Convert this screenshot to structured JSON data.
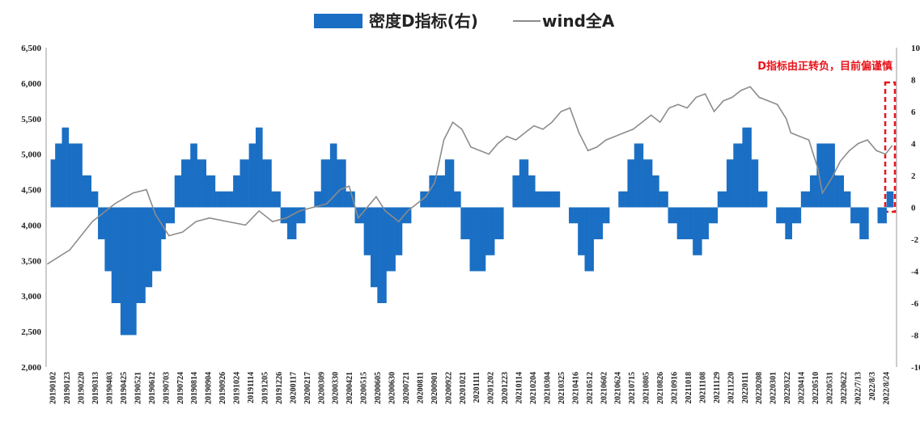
{
  "chart_data": {
    "type": "bar+line",
    "title": "",
    "legend": {
      "position": "top-center",
      "entries": [
        {
          "label": "密度D指标(右)",
          "color": "#1a6fc4",
          "kind": "bar"
        },
        {
          "label": "wind全A",
          "color": "#8c8c8c",
          "kind": "line"
        }
      ]
    },
    "left_axis": {
      "ylim": [
        2000,
        6500
      ],
      "ticks": [
        "2,000",
        "2,500",
        "3,000",
        "3,500",
        "4,000",
        "4,500",
        "5,000",
        "5,500",
        "6,000",
        "6,500"
      ]
    },
    "right_axis": {
      "ylim": [
        -10,
        10
      ],
      "ticks": [
        "-10",
        "-8",
        "-6",
        "-4",
        "-2",
        "0",
        "2",
        "4",
        "6",
        "8",
        "10"
      ]
    },
    "x_tick_labels": [
      "20190102",
      "20190123",
      "20190220",
      "20190313",
      "20190403",
      "20190425",
      "20190521",
      "20190612",
      "20190703",
      "20190724",
      "20190814",
      "20190904",
      "20190926",
      "20191024",
      "20191114",
      "20191205",
      "20191226",
      "20200117",
      "20200217",
      "20200309",
      "20200330",
      "20200421",
      "20200515",
      "20200605",
      "20200630",
      "20200721",
      "20200811",
      "20200901",
      "20200922",
      "20201021",
      "20201111",
      "20201202",
      "20201223",
      "20210114",
      "20210204",
      "20210304",
      "20210325",
      "20210416",
      "20210512",
      "20210602",
      "20210624",
      "20210715",
      "20210805",
      "20210826",
      "20210916",
      "20211018",
      "20211108",
      "20211129",
      "20211220",
      "20220111",
      "20220208",
      "20220301",
      "20220322",
      "20220414",
      "20220510",
      "20220531",
      "20220622",
      "2022/7/13",
      "2022/8/3",
      "2022/8/24"
    ],
    "annotation": {
      "text": "D指标由正转负，目前偏谨慎",
      "color": "#e8141b"
    },
    "density_D": {
      "name": "密度D指标(右)",
      "segments": [
        [
          0,
          0
        ],
        [
          2,
          3
        ],
        [
          4,
          4
        ],
        [
          7,
          5
        ],
        [
          10,
          4
        ],
        [
          14,
          4
        ],
        [
          16,
          2
        ],
        [
          20,
          1
        ],
        [
          23,
          -2
        ],
        [
          26,
          -4
        ],
        [
          29,
          -6
        ],
        [
          33,
          -8
        ],
        [
          37,
          -8
        ],
        [
          40,
          -6
        ],
        [
          44,
          -5
        ],
        [
          47,
          -4
        ],
        [
          51,
          -2
        ],
        [
          53,
          -1
        ],
        [
          57,
          2
        ],
        [
          60,
          3
        ],
        [
          64,
          4
        ],
        [
          67,
          3
        ],
        [
          71,
          2
        ],
        [
          75,
          1
        ],
        [
          79,
          1
        ],
        [
          83,
          2
        ],
        [
          86,
          3
        ],
        [
          90,
          4
        ],
        [
          93,
          5
        ],
        [
          96,
          3
        ],
        [
          100,
          1
        ],
        [
          104,
          -1
        ],
        [
          107,
          -2
        ],
        [
          111,
          -1
        ],
        [
          115,
          0
        ],
        [
          119,
          1
        ],
        [
          122,
          3
        ],
        [
          126,
          4
        ],
        [
          129,
          3
        ],
        [
          133,
          1
        ],
        [
          137,
          -1
        ],
        [
          141,
          -3
        ],
        [
          144,
          -5
        ],
        [
          147,
          -6
        ],
        [
          151,
          -4
        ],
        [
          155,
          -3
        ],
        [
          158,
          -1
        ],
        [
          162,
          0
        ],
        [
          166,
          1
        ],
        [
          170,
          2
        ],
        [
          173,
          2
        ],
        [
          177,
          3
        ],
        [
          181,
          1
        ],
        [
          184,
          -2
        ],
        [
          188,
          -4
        ],
        [
          191,
          -4
        ],
        [
          195,
          -3
        ],
        [
          199,
          -2
        ],
        [
          203,
          0
        ],
        [
          207,
          2
        ],
        [
          210,
          3
        ],
        [
          214,
          2
        ],
        [
          217,
          1
        ],
        [
          221,
          1
        ],
        [
          225,
          1
        ],
        [
          228,
          0
        ],
        [
          232,
          -1
        ],
        [
          236,
          -3
        ],
        [
          239,
          -4
        ],
        [
          243,
          -2
        ],
        [
          247,
          -1
        ],
        [
          250,
          0
        ],
        [
          254,
          1
        ],
        [
          258,
          3
        ],
        [
          261,
          4
        ],
        [
          265,
          3
        ],
        [
          269,
          2
        ],
        [
          272,
          1
        ],
        [
          276,
          -1
        ],
        [
          280,
          -2
        ],
        [
          283,
          -2
        ],
        [
          287,
          -3
        ],
        [
          291,
          -2
        ],
        [
          294,
          -1
        ],
        [
          298,
          1
        ],
        [
          302,
          3
        ],
        [
          305,
          4
        ],
        [
          309,
          5
        ],
        [
          313,
          3
        ],
        [
          316,
          1
        ],
        [
          320,
          0
        ],
        [
          324,
          -1
        ],
        [
          328,
          -2
        ],
        [
          331,
          -1
        ],
        [
          335,
          1
        ],
        [
          339,
          2
        ],
        [
          342,
          4
        ],
        [
          346,
          4
        ],
        [
          350,
          2
        ],
        [
          354,
          1
        ],
        [
          357,
          -1
        ],
        [
          361,
          -2
        ],
        [
          365,
          0
        ],
        [
          369,
          -1
        ],
        [
          373,
          1
        ]
      ],
      "count": 376
    },
    "wind_A": {
      "name": "wind全A",
      "points": [
        [
          0,
          3450
        ],
        [
          10,
          3650
        ],
        [
          20,
          4050
        ],
        [
          30,
          4300
        ],
        [
          38,
          4450
        ],
        [
          44,
          4500
        ],
        [
          48,
          4150
        ],
        [
          54,
          3850
        ],
        [
          60,
          3900
        ],
        [
          66,
          4050
        ],
        [
          72,
          4100
        ],
        [
          80,
          4050
        ],
        [
          88,
          4000
        ],
        [
          94,
          4200
        ],
        [
          100,
          4050
        ],
        [
          106,
          4100
        ],
        [
          112,
          4200
        ],
        [
          118,
          4250
        ],
        [
          124,
          4300
        ],
        [
          130,
          4500
        ],
        [
          134,
          4550
        ],
        [
          138,
          4100
        ],
        [
          142,
          4250
        ],
        [
          146,
          4400
        ],
        [
          150,
          4200
        ],
        [
          156,
          4050
        ],
        [
          160,
          4200
        ],
        [
          164,
          4300
        ],
        [
          168,
          4400
        ],
        [
          172,
          4600
        ],
        [
          176,
          5200
        ],
        [
          180,
          5450
        ],
        [
          184,
          5350
        ],
        [
          188,
          5100
        ],
        [
          192,
          5050
        ],
        [
          196,
          5000
        ],
        [
          200,
          5150
        ],
        [
          204,
          5250
        ],
        [
          208,
          5200
        ],
        [
          212,
          5300
        ],
        [
          216,
          5400
        ],
        [
          220,
          5350
        ],
        [
          224,
          5450
        ],
        [
          228,
          5600
        ],
        [
          232,
          5650
        ],
        [
          236,
          5300
        ],
        [
          240,
          5050
        ],
        [
          244,
          5100
        ],
        [
          248,
          5200
        ],
        [
          252,
          5250
        ],
        [
          256,
          5300
        ],
        [
          260,
          5350
        ],
        [
          264,
          5450
        ],
        [
          268,
          5550
        ],
        [
          272,
          5450
        ],
        [
          276,
          5650
        ],
        [
          280,
          5700
        ],
        [
          284,
          5650
        ],
        [
          288,
          5800
        ],
        [
          292,
          5850
        ],
        [
          296,
          5600
        ],
        [
          300,
          5750
        ],
        [
          304,
          5800
        ],
        [
          308,
          5900
        ],
        [
          312,
          5950
        ],
        [
          316,
          5800
        ],
        [
          320,
          5750
        ],
        [
          324,
          5700
        ],
        [
          328,
          5500
        ],
        [
          330,
          5300
        ],
        [
          334,
          5250
        ],
        [
          338,
          5200
        ],
        [
          342,
          4800
        ],
        [
          344,
          4450
        ],
        [
          348,
          4650
        ],
        [
          352,
          4900
        ],
        [
          356,
          5050
        ],
        [
          360,
          5150
        ],
        [
          364,
          5200
        ],
        [
          368,
          5050
        ],
        [
          372,
          5000
        ],
        [
          375,
          5120
        ]
      ]
    }
  }
}
